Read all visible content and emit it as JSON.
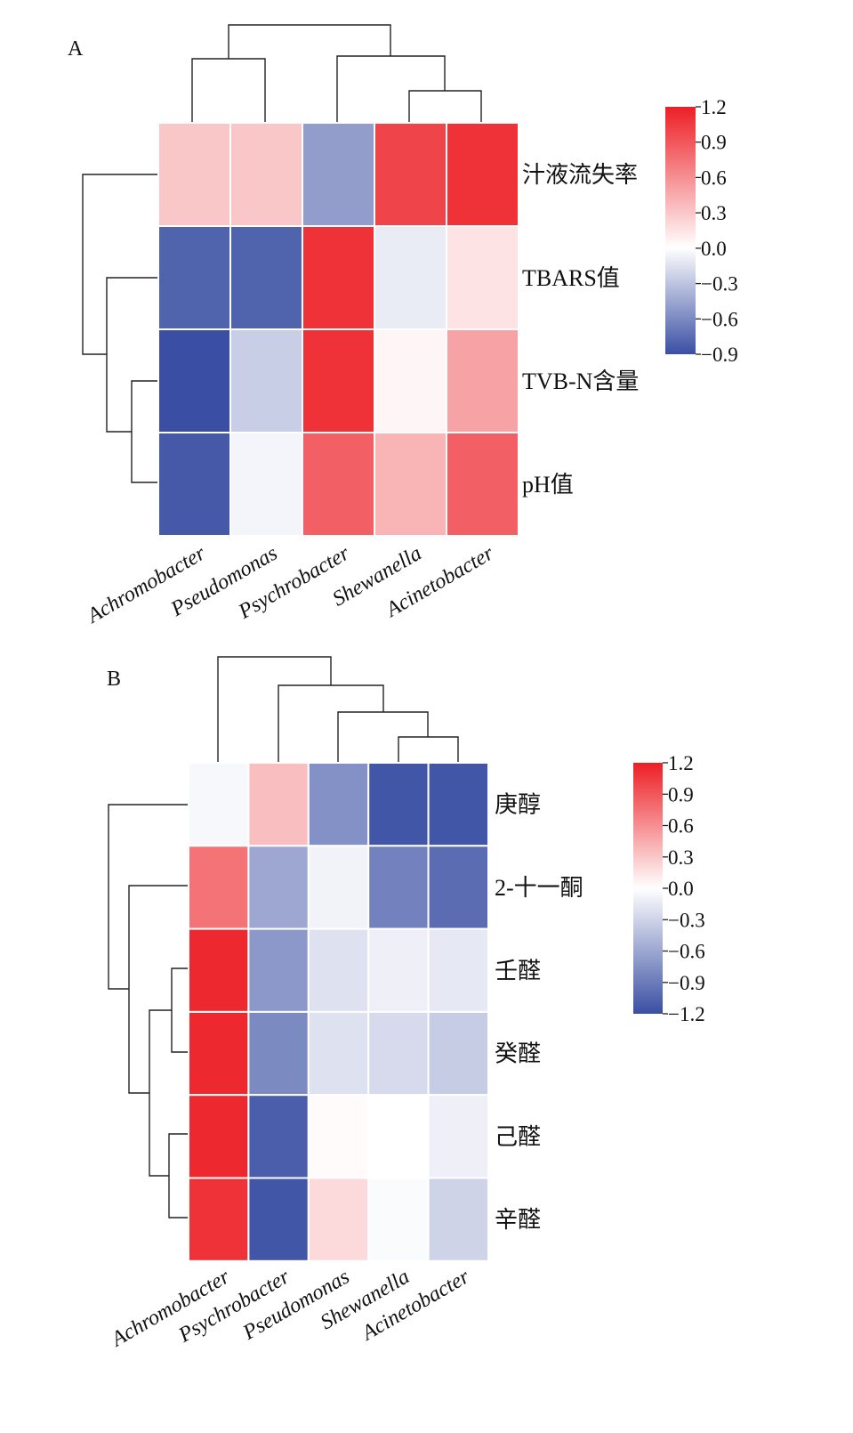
{
  "chart_data": [
    {
      "type": "heatmap",
      "panel_label": "A",
      "columns": [
        "Achromobacter",
        "Pseudomonas",
        "Psychrobacter",
        "Shewanella",
        "Acinetobacter"
      ],
      "rows": [
        "汁液流失率",
        "TBARS值",
        "TVB-N含量",
        "pH值"
      ],
      "values": [
        [
          0.3,
          0.3,
          -0.5,
          1.0,
          1.1
        ],
        [
          -0.8,
          -0.8,
          1.1,
          -0.1,
          0.15
        ],
        [
          -0.9,
          -0.25,
          1.1,
          0.05,
          0.5
        ],
        [
          -0.85,
          -0.05,
          0.85,
          0.4,
          0.85
        ]
      ],
      "colorbar": {
        "min": -0.9,
        "max": 1.2,
        "ticks": [
          "1.2",
          "0.9",
          "0.6",
          "0.3",
          "0.0",
          "−0.3",
          "−0.6",
          "−0.9"
        ]
      },
      "colors": {
        "low": "#3a4fa3",
        "mid": "#ffffff",
        "high": "#ec1f25"
      }
    },
    {
      "type": "heatmap",
      "panel_label": "B",
      "columns": [
        "Achromobacter",
        "Psychrobacter",
        "Pseudomonas",
        "Shewanella",
        "Acinetobacter"
      ],
      "rows": [
        "庚醇",
        "2-十一酮",
        "壬醛",
        "癸醛",
        "己醛",
        "辛醛"
      ],
      "values": [
        [
          -0.05,
          0.35,
          -0.75,
          -1.15,
          -1.15
        ],
        [
          0.75,
          -0.6,
          -0.08,
          -0.85,
          -1.0
        ],
        [
          1.15,
          -0.7,
          -0.2,
          -0.1,
          -0.15
        ],
        [
          1.15,
          -0.8,
          -0.2,
          -0.25,
          -0.35
        ],
        [
          1.15,
          -1.1,
          0.02,
          0.0,
          -0.1
        ],
        [
          1.1,
          -1.15,
          0.2,
          -0.03,
          -0.3
        ]
      ],
      "colorbar": {
        "min": -1.2,
        "max": 1.2,
        "ticks": [
          "1.2",
          "0.9",
          "0.6",
          "0.3",
          "0.0",
          "−0.3",
          "−0.6",
          "−0.9",
          "−1.2"
        ]
      },
      "colors": {
        "low": "#3a4fa3",
        "mid": "#ffffff",
        "high": "#ec1f25"
      }
    }
  ]
}
